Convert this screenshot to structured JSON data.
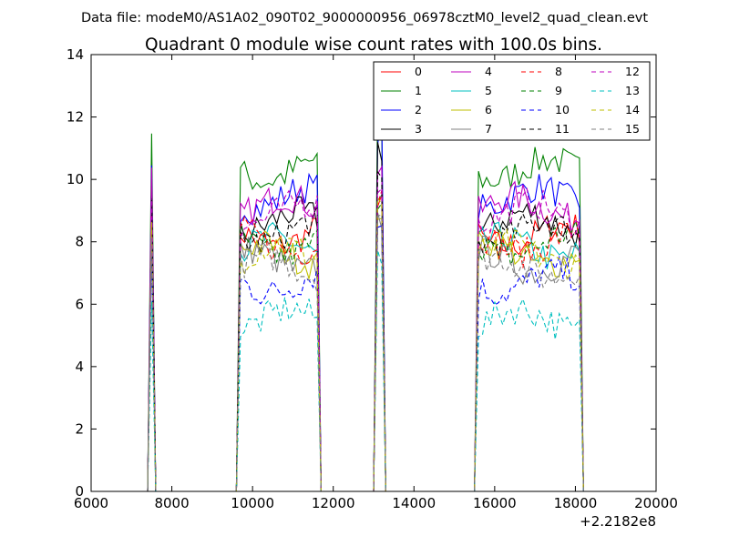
{
  "figure": {
    "suptitle": "Data file: modeM0/AS1A02_090T02_9000000956_06978cztM0_level2_quad_clean.evt",
    "offset_label": "+2.2182e8"
  },
  "chart_data": {
    "type": "line",
    "title": "Quadrant 0 module wise count rates with 100.0s bins.",
    "xlabel": "",
    "ylabel": "",
    "xlim": [
      6000,
      20000
    ],
    "ylim": [
      0,
      14
    ],
    "xticks": [
      6000,
      8000,
      10000,
      12000,
      14000,
      16000,
      18000,
      20000
    ],
    "yticks": [
      0,
      2,
      4,
      6,
      8,
      10,
      12,
      14
    ],
    "x_offset": 221820000,
    "grid": false,
    "legend_position": "top-right",
    "legend_columns": 4,
    "segments": [
      {
        "start": 7450,
        "end": 7550
      },
      {
        "start": 9650,
        "end": 11650
      },
      {
        "start": 13050,
        "end": 13250
      },
      {
        "start": 15550,
        "end": 18150
      }
    ],
    "series": [
      {
        "name": "0",
        "color": "#ff0000",
        "dashed": false,
        "plateau": 8.2,
        "peak": 10.0
      },
      {
        "name": "1",
        "color": "#008000",
        "dashed": false,
        "plateau": 10.3,
        "peak": 12.4
      },
      {
        "name": "2",
        "color": "#0000ff",
        "dashed": false,
        "plateau": 9.4,
        "peak": 12.3
      },
      {
        "name": "3",
        "color": "#000000",
        "dashed": false,
        "plateau": 8.6,
        "peak": 11.6
      },
      {
        "name": "4",
        "color": "#bf00bf",
        "dashed": false,
        "plateau": 9.1,
        "peak": 11.0
      },
      {
        "name": "5",
        "color": "#00bfbf",
        "dashed": false,
        "plateau": 7.8,
        "peak": 9.6
      },
      {
        "name": "6",
        "color": "#bfbf00",
        "dashed": false,
        "plateau": 7.6,
        "peak": 9.5
      },
      {
        "name": "7",
        "color": "#808080",
        "dashed": false,
        "plateau": 7.4,
        "peak": 9.2
      },
      {
        "name": "8",
        "color": "#ff0000",
        "dashed": true,
        "plateau": 8.0,
        "peak": 10.0
      },
      {
        "name": "9",
        "color": "#008000",
        "dashed": true,
        "plateau": 7.9,
        "peak": 10.0
      },
      {
        "name": "10",
        "color": "#0000ff",
        "dashed": true,
        "plateau": 6.7,
        "peak": 9.0
      },
      {
        "name": "11",
        "color": "#000000",
        "dashed": true,
        "plateau": 8.3,
        "peak": 10.4
      },
      {
        "name": "12",
        "color": "#bf00bf",
        "dashed": true,
        "plateau": 8.9,
        "peak": 10.5
      },
      {
        "name": "13",
        "color": "#00bfbf",
        "dashed": true,
        "plateau": 5.5,
        "peak": 8.0
      },
      {
        "name": "14",
        "color": "#bfbf00",
        "dashed": true,
        "plateau": 7.6,
        "peak": 9.8
      },
      {
        "name": "15",
        "color": "#808080",
        "dashed": true,
        "plateau": 7.2,
        "peak": 9.4
      }
    ]
  }
}
